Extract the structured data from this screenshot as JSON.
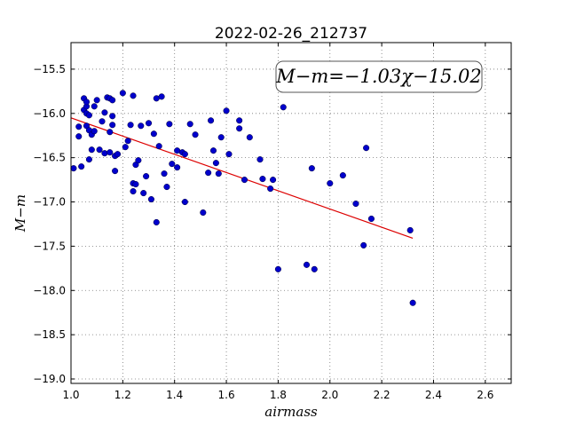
{
  "chart_data": {
    "type": "scatter",
    "title": "2022-02-26_212737",
    "xlabel": "airmass",
    "ylabel": "M−m",
    "annotation": "M−m=−1.03χ−15.02",
    "xlim": [
      1.0,
      2.7
    ],
    "ylim": [
      -19.05,
      -15.2
    ],
    "y_inverted": true,
    "grid": true,
    "xticks": [
      "1.0",
      "1.2",
      "1.4",
      "1.6",
      "1.8",
      "2.0",
      "2.2",
      "2.4",
      "2.6"
    ],
    "yticks": [
      "−15.5",
      "−16.0",
      "−16.5",
      "−17.0",
      "−17.5",
      "−18.0",
      "−18.5",
      "−19.0"
    ],
    "colors": {
      "points": "#0000cc",
      "fit": "#dd0000"
    },
    "fit": {
      "slope": -1.03,
      "intercept": -15.02,
      "x_range": [
        1.0,
        2.32
      ]
    },
    "points": [
      [
        1.01,
        -16.62
      ],
      [
        1.03,
        -16.15
      ],
      [
        1.04,
        -16.6
      ],
      [
        1.03,
        -16.26
      ],
      [
        1.05,
        -15.83
      ],
      [
        1.05,
        -15.96
      ],
      [
        1.06,
        -15.92
      ],
      [
        1.06,
        -16.0
      ],
      [
        1.06,
        -15.87
      ],
      [
        1.07,
        -16.02
      ],
      [
        1.06,
        -16.14
      ],
      [
        1.07,
        -16.19
      ],
      [
        1.07,
        -16.52
      ],
      [
        1.08,
        -16.41
      ],
      [
        1.08,
        -16.24
      ],
      [
        1.09,
        -15.92
      ],
      [
        1.09,
        -16.2
      ],
      [
        1.1,
        -15.85
      ],
      [
        1.11,
        -16.41
      ],
      [
        1.12,
        -16.09
      ],
      [
        1.13,
        -15.99
      ],
      [
        1.13,
        -16.45
      ],
      [
        1.14,
        -15.82
      ],
      [
        1.15,
        -15.83
      ],
      [
        1.15,
        -16.21
      ],
      [
        1.15,
        -16.44
      ],
      [
        1.16,
        -15.85
      ],
      [
        1.16,
        -16.03
      ],
      [
        1.16,
        -16.13
      ],
      [
        1.17,
        -16.48
      ],
      [
        1.17,
        -16.65
      ],
      [
        1.18,
        -16.46
      ],
      [
        1.2,
        -15.77
      ],
      [
        1.21,
        -16.38
      ],
      [
        1.22,
        -16.31
      ],
      [
        1.23,
        -16.13
      ],
      [
        1.24,
        -16.79
      ],
      [
        1.24,
        -16.88
      ],
      [
        1.24,
        -15.8
      ],
      [
        1.25,
        -16.8
      ],
      [
        1.25,
        -16.58
      ],
      [
        1.26,
        -16.53
      ],
      [
        1.27,
        -16.14
      ],
      [
        1.28,
        -16.9
      ],
      [
        1.29,
        -16.71
      ],
      [
        1.3,
        -16.11
      ],
      [
        1.31,
        -16.97
      ],
      [
        1.32,
        -16.23
      ],
      [
        1.33,
        -15.83
      ],
      [
        1.33,
        -17.23
      ],
      [
        1.34,
        -16.37
      ],
      [
        1.35,
        -15.81
      ],
      [
        1.36,
        -16.68
      ],
      [
        1.37,
        -16.83
      ],
      [
        1.38,
        -16.12
      ],
      [
        1.39,
        -16.57
      ],
      [
        1.41,
        -16.42
      ],
      [
        1.41,
        -16.61
      ],
      [
        1.43,
        -16.44
      ],
      [
        1.44,
        -17.0
      ],
      [
        1.44,
        -16.46
      ],
      [
        1.46,
        -16.12
      ],
      [
        1.48,
        -16.24
      ],
      [
        1.51,
        -17.12
      ],
      [
        1.53,
        -16.67
      ],
      [
        1.54,
        -16.08
      ],
      [
        1.55,
        -16.42
      ],
      [
        1.56,
        -16.56
      ],
      [
        1.57,
        -16.68
      ],
      [
        1.58,
        -16.27
      ],
      [
        1.6,
        -15.97
      ],
      [
        1.61,
        -16.46
      ],
      [
        1.65,
        -16.08
      ],
      [
        1.65,
        -16.17
      ],
      [
        1.67,
        -16.75
      ],
      [
        1.69,
        -16.27
      ],
      [
        1.73,
        -16.52
      ],
      [
        1.74,
        -16.74
      ],
      [
        1.77,
        -16.85
      ],
      [
        1.78,
        -16.75
      ],
      [
        1.8,
        -17.76
      ],
      [
        1.82,
        -15.93
      ],
      [
        1.91,
        -17.71
      ],
      [
        1.93,
        -16.62
      ],
      [
        1.94,
        -17.76
      ],
      [
        2.0,
        -16.79
      ],
      [
        2.05,
        -16.7
      ],
      [
        2.1,
        -17.02
      ],
      [
        2.13,
        -17.49
      ],
      [
        2.14,
        -16.39
      ],
      [
        2.16,
        -17.19
      ],
      [
        2.31,
        -17.32
      ],
      [
        2.32,
        -18.14
      ]
    ]
  }
}
